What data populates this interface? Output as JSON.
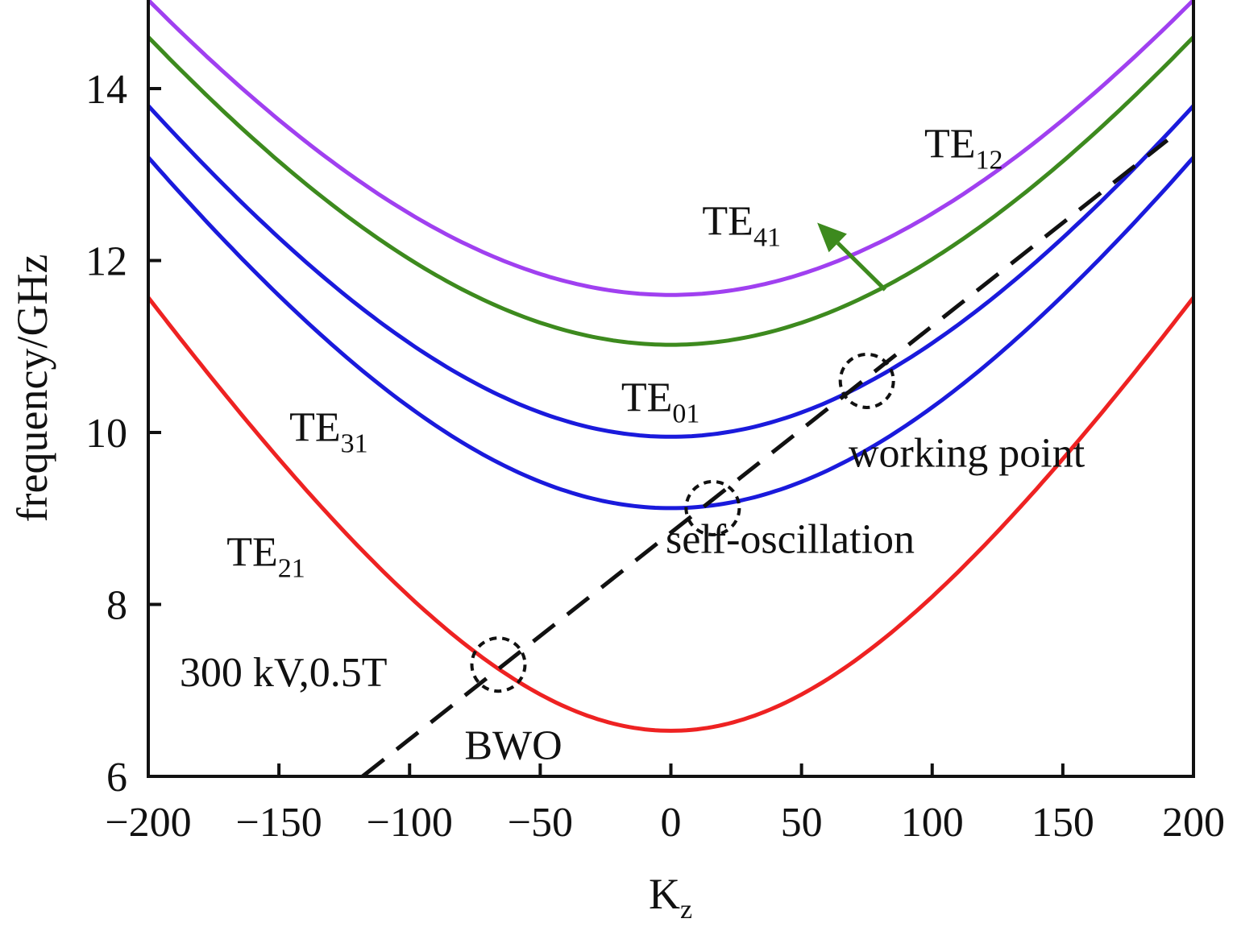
{
  "chart_data": {
    "type": "line",
    "title": "",
    "xlabel": "K",
    "xlabel_sub": "z",
    "ylabel": "frequency/GHz",
    "xlim": [
      -200,
      200
    ],
    "ylim": [
      6,
      15
    ],
    "x_ticks": [
      -200,
      -150,
      -100,
      -50,
      0,
      50,
      100,
      150,
      200
    ],
    "x_tick_labels": [
      "−200",
      "−150",
      "−100",
      "−50",
      "0",
      "50",
      "100",
      "150",
      "200"
    ],
    "y_ticks": [
      6,
      8,
      10,
      12,
      14
    ],
    "y_tick_labels": [
      "6",
      "8",
      "10",
      "12",
      "14"
    ],
    "grid": false,
    "series": [
      {
        "name": "TE21",
        "color": "#ee2222",
        "cutoff_ghz": 6.53,
        "x": [
          -200,
          -150,
          -100,
          -50,
          0,
          50,
          100,
          150,
          200
        ],
        "y": [
          11.57,
          9.97,
          8.49,
          7.22,
          6.53,
          7.22,
          8.49,
          9.97,
          11.57
        ]
      },
      {
        "name": "TE31",
        "color": "#1a1adc",
        "cutoff_ghz": 9.12,
        "x": [
          -200,
          -150,
          -100,
          -50,
          0,
          50,
          100,
          150,
          200
        ],
        "y": [
          13.2,
          11.98,
          10.68,
          9.6,
          9.12,
          9.6,
          10.68,
          11.98,
          13.2
        ]
      },
      {
        "name": "TE01",
        "color": "#1a1adc",
        "cutoff_ghz": 9.95,
        "x": [
          -200,
          -150,
          -100,
          -50,
          0,
          50,
          100,
          150,
          200
        ],
        "y": [
          13.8,
          12.45,
          11.3,
          10.35,
          9.95,
          10.35,
          11.3,
          12.45,
          13.8
        ]
      },
      {
        "name": "TE41",
        "color": "#3d8a1e",
        "cutoff_ghz": 11.02,
        "x": [
          -200,
          -150,
          -100,
          -50,
          0,
          50,
          100,
          150,
          200
        ],
        "y": [
          14.6,
          13.35,
          12.2,
          11.37,
          11.02,
          11.37,
          12.2,
          13.35,
          14.6
        ]
      },
      {
        "name": "TE12",
        "color": "#a040f0",
        "cutoff_ghz": 11.6,
        "x": [
          -200,
          -150,
          -100,
          -50,
          0,
          50,
          100,
          150,
          200
        ],
        "y": [
          15.03,
          13.9,
          12.8,
          11.92,
          11.6,
          11.92,
          12.8,
          13.9,
          15.03
        ]
      }
    ],
    "beam_line": {
      "style": "dashed",
      "color": "#111111",
      "x": [
        -118,
        190
      ],
      "y": [
        6.0,
        13.4
      ]
    },
    "mode_labels": [
      {
        "text": "TE",
        "sub": "12",
        "x": 97,
        "y": 13.2
      },
      {
        "text": "TE",
        "sub": "41",
        "x": 12,
        "y": 12.3
      },
      {
        "text": "TE",
        "sub": "01",
        "x": -19,
        "y": 10.25
      },
      {
        "text": "TE",
        "sub": "31",
        "x": -146,
        "y": 9.9
      },
      {
        "text": "TE",
        "sub": "21",
        "x": -170,
        "y": 8.45
      }
    ],
    "arrow": {
      "color": "#3d8a1e",
      "from": [
        82,
        11.66
      ],
      "to": [
        56,
        12.44
      ]
    },
    "annotations": [
      {
        "text": "working point",
        "x": 68,
        "y": 9.6,
        "circle": [
          75,
          10.6
        ]
      },
      {
        "text": "self-oscillation",
        "x": -2,
        "y": 8.6,
        "circle": [
          16,
          9.12
        ]
      },
      {
        "text": "300 kV,0.5T",
        "x": -188,
        "y": 7.05
      },
      {
        "text": "BWO",
        "x": -79,
        "y": 6.2,
        "circle": [
          -66,
          7.3
        ]
      }
    ]
  }
}
